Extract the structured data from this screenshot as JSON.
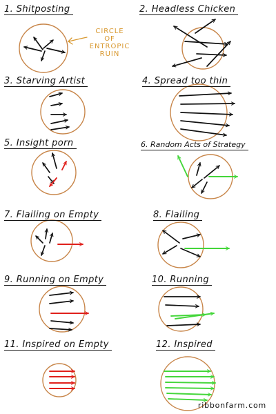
{
  "panels": [
    {
      "label": "1. Shitposting"
    },
    {
      "label": "2. Headless Chicken"
    },
    {
      "label": "3. Starving Artist"
    },
    {
      "label": "4. Spread too thin"
    },
    {
      "label": "5. Insight porn"
    },
    {
      "label": "6. Random Acts of Strategy"
    },
    {
      "label": "7. Flailing on Empty"
    },
    {
      "label": "8. Flailing"
    },
    {
      "label": "9. Running on Empty"
    },
    {
      "label": "10. Running"
    },
    {
      "label": "11. Inspired on Empty"
    },
    {
      "label": "12. Inspired"
    }
  ],
  "annotation": {
    "lines": [
      "CIRCLE",
      "OF",
      "ENTROPIC",
      "RUIN"
    ]
  },
  "credit": "ribbonfarm.com",
  "colors": {
    "circle": "#c8864a",
    "ink": "#111111",
    "red": "#e0201c",
    "green": "#44d63a",
    "annotation": "#d8982f"
  }
}
